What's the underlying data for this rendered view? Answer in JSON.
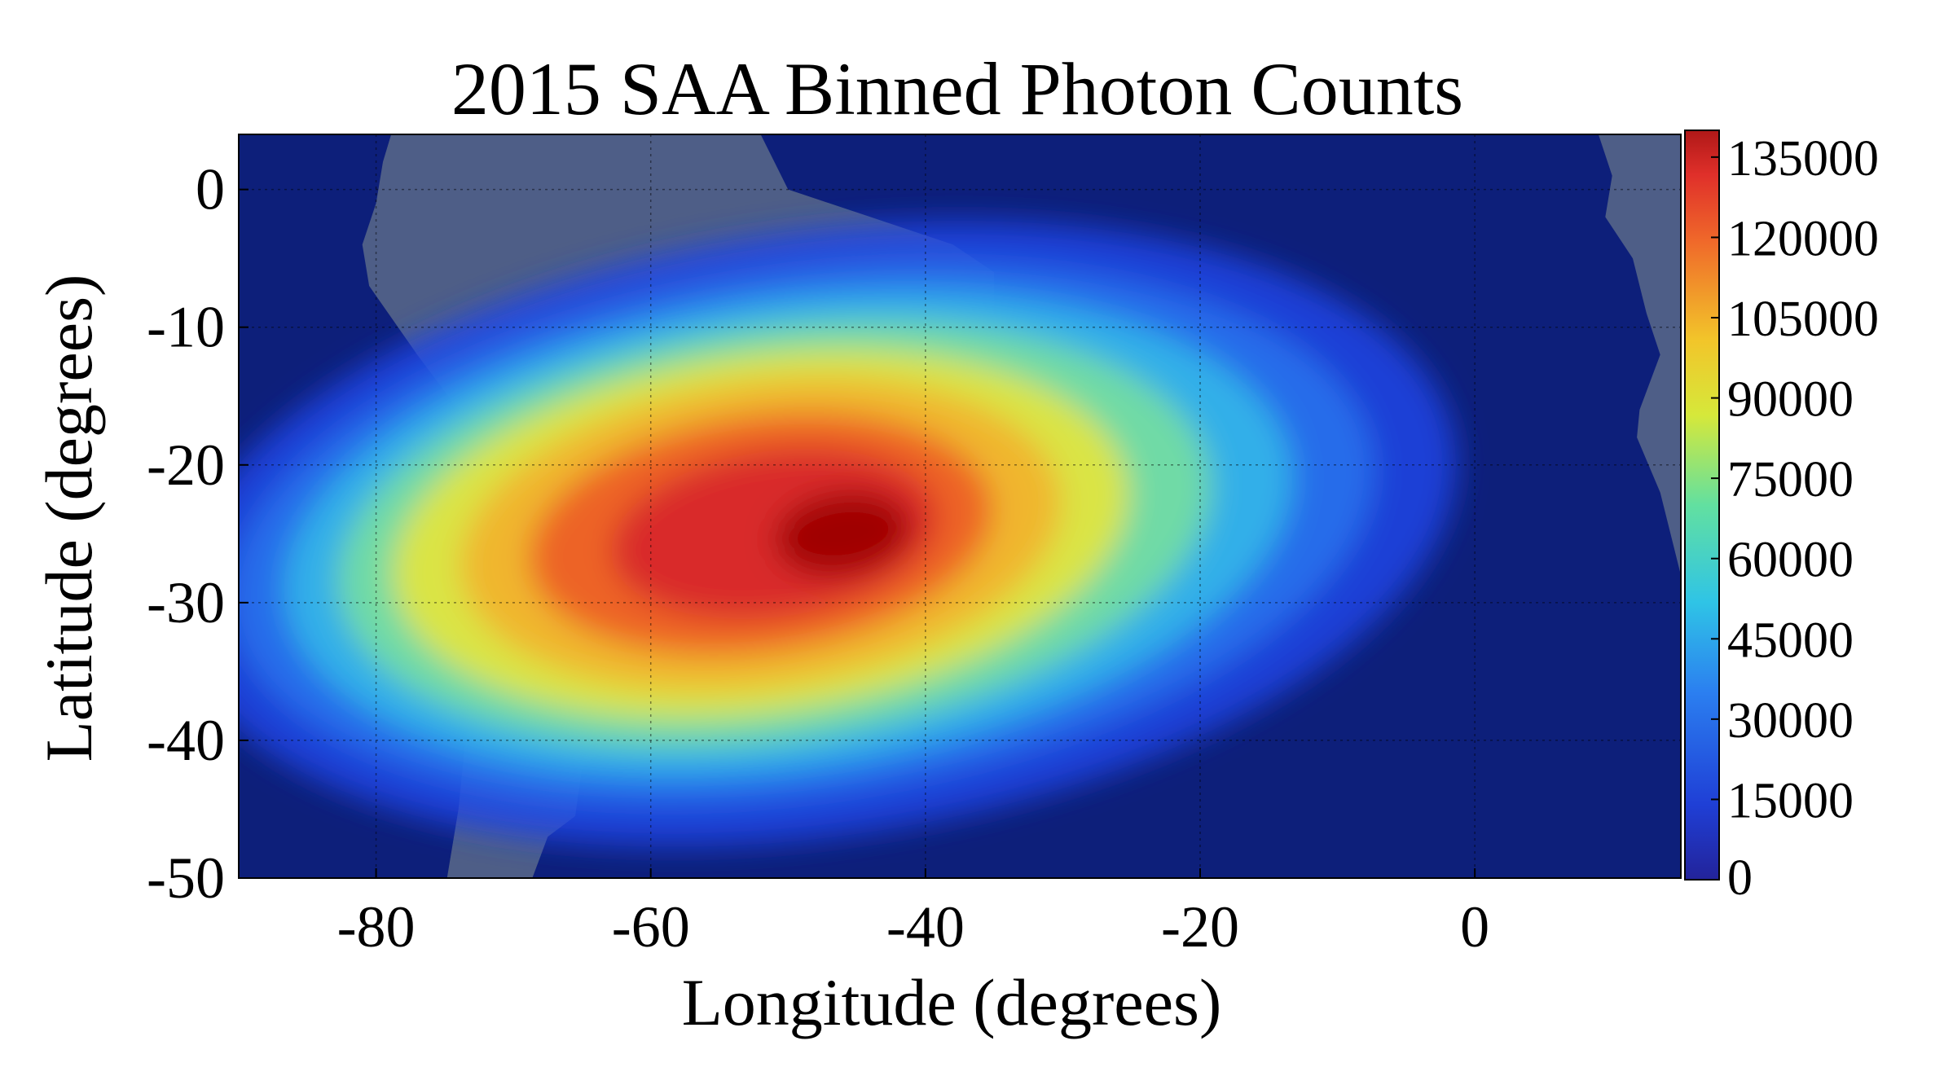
{
  "chart_data": {
    "type": "heatmap",
    "title": "2015 SAA Binned Photon Counts",
    "xlabel": "Longitude (degrees)",
    "ylabel": "Latitude (degrees)",
    "xlim": [
      -90,
      15
    ],
    "ylim": [
      -50,
      4
    ],
    "x_ticks": [
      -80,
      -60,
      -40,
      -20,
      0
    ],
    "y_ticks": [
      0,
      -10,
      -20,
      -30,
      -40,
      -50
    ],
    "x_tick_labels": [
      "-80",
      "-60",
      "-40",
      "-20",
      "0"
    ],
    "y_tick_labels": [
      "0",
      "-10",
      "-20",
      "-30",
      "-40",
      "-50"
    ],
    "grid": true,
    "background": "satellite map of South America and the South Atlantic",
    "colormap": "jet",
    "colorbar": {
      "position": "right",
      "min": 0,
      "max": 140000,
      "ticks": [
        0,
        15000,
        30000,
        45000,
        60000,
        75000,
        90000,
        105000,
        120000,
        135000
      ],
      "tick_labels": [
        "0",
        "15000",
        "30000",
        "45000",
        "60000",
        "75000",
        "90000",
        "105000",
        "120000",
        "135000"
      ]
    },
    "peak": {
      "lon": -46,
      "lat": -25,
      "value": 140000
    },
    "colors": {
      "ocean": "#0d1f7a",
      "land": "#5b6a8a",
      "low": "#1428c8",
      "high": "#a00000"
    }
  }
}
